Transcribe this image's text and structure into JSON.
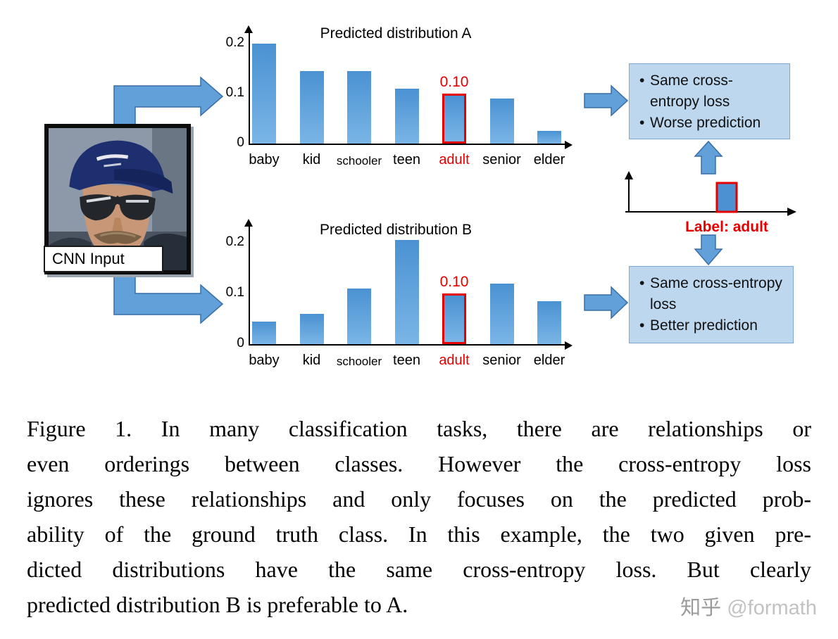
{
  "diagram": {
    "cnn_input_label": "CNN Input",
    "label_axis": {
      "annotation": "Label: adult"
    },
    "outcome_box_a": {
      "bullets": [
        "Same cross-entropy loss",
        "Worse prediction"
      ]
    },
    "outcome_box_b": {
      "bullets": [
        "Same cross-entropy loss",
        "Better prediction"
      ]
    }
  },
  "chart_data": [
    {
      "type": "bar",
      "title": "Predicted distribution A",
      "categories": [
        "baby",
        "kid",
        "schooler",
        "teen",
        "adult",
        "senior",
        "elder"
      ],
      "values": [
        0.2,
        0.145,
        0.145,
        0.11,
        0.1,
        0.09,
        0.025
      ],
      "yticks": [
        "0",
        "0.1",
        "0.2"
      ],
      "ylim": [
        0,
        0.22
      ],
      "xlabel": "",
      "ylabel": "",
      "grid": false,
      "highlight": {
        "category": "adult",
        "value_label": "0.10",
        "color": "#e50000"
      },
      "small_category": "schooler"
    },
    {
      "type": "bar",
      "title": "Predicted distribution B",
      "categories": [
        "baby",
        "kid",
        "schooler",
        "teen",
        "adult",
        "senior",
        "elder"
      ],
      "values": [
        0.045,
        0.06,
        0.11,
        0.205,
        0.1,
        0.12,
        0.085
      ],
      "yticks": [
        "0",
        "0.1",
        "0.2"
      ],
      "ylim": [
        0,
        0.22
      ],
      "xlabel": "",
      "ylabel": "",
      "grid": false,
      "highlight": {
        "category": "adult",
        "value_label": "0.10",
        "color": "#e50000"
      },
      "small_category": "schooler"
    }
  ],
  "caption": {
    "lines": [
      "Figure 1. In many classification tasks, there are relationships or",
      "even orderings between classes.  However the cross-entropy loss",
      "ignores these relationships and only focuses on the predicted prob-",
      "ability of the ground truth class. In this example, the two given pre-",
      "dicted distributions have the same cross-entropy loss.  But clearly",
      "predicted distribution B is preferable to A."
    ]
  },
  "watermark": {
    "brand": "知乎",
    "handle": "@formath"
  },
  "colors": {
    "bar_blue_top": "#4a92d2",
    "bar_blue_bottom": "#7ab5e6",
    "highlight_red": "#e50000",
    "box_fill": "#bdd7ee",
    "box_border": "#7fa8d0",
    "arrow_fill": "#61a0d8",
    "arrow_stroke": "#3a6ea5"
  }
}
